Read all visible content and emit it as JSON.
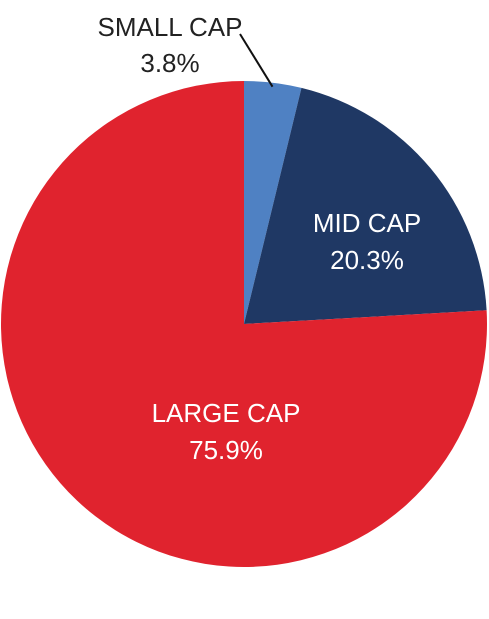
{
  "chart_data": {
    "type": "pie",
    "slices": [
      {
        "name": "SMALL CAP",
        "value": 3.8,
        "label": "3.8%",
        "color": "#4f81c3",
        "text_color": "#222222"
      },
      {
        "name": "MID CAP",
        "value": 20.3,
        "label": "20.3%",
        "color": "#1f3864",
        "text_color": "#ffffff"
      },
      {
        "name": "LARGE CAP",
        "value": 75.9,
        "label": "75.9%",
        "color": "#e0232e",
        "text_color": "#ffffff"
      }
    ],
    "start": "12 o'clock",
    "direction": "clockwise",
    "legend": "none"
  }
}
